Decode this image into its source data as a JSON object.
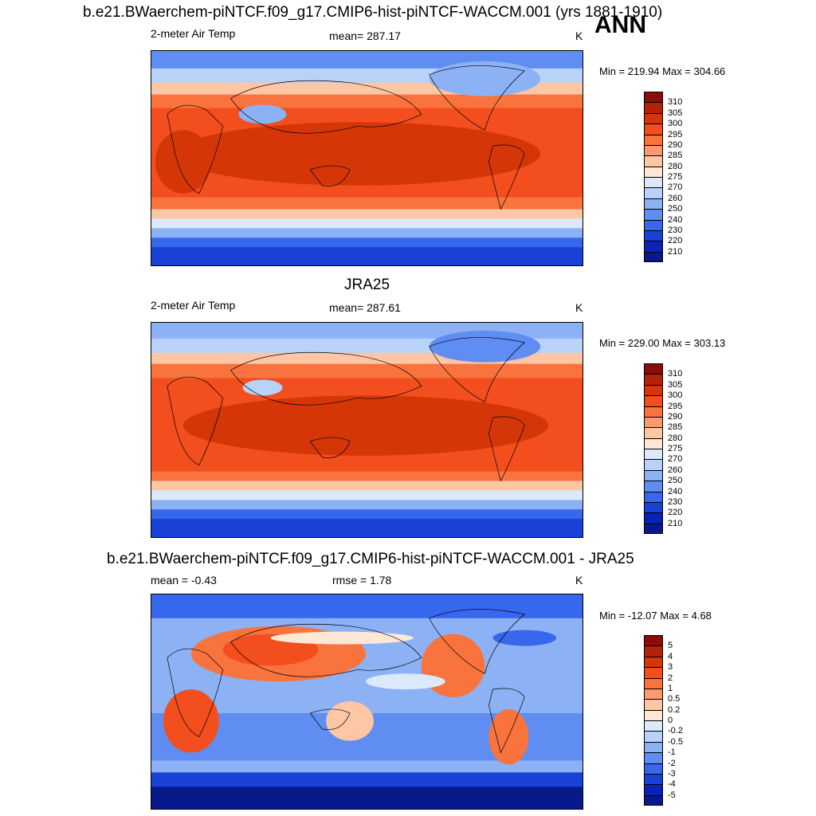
{
  "figure": {
    "season": "ANN",
    "unit": "K",
    "panels": [
      {
        "title": "b.e21.BWaerchem-piNTCF.f09_g17.CMIP6-hist-piNTCF-WACCM.001 (yrs 1881-1910)",
        "left_label": "2-meter Air Temp",
        "center_label": "mean= 287.17",
        "right_label": "K",
        "minmax": "Min = 219.94 Max = 304.66",
        "kind": "abs"
      },
      {
        "title": "JRA25",
        "left_label": "2-meter Air Temp",
        "center_label": "mean= 287.61",
        "right_label": "K",
        "minmax": "Min = 229.00 Max = 303.13",
        "kind": "abs"
      },
      {
        "title": "b.e21.BWaerchem-piNTCF.f09_g17.CMIP6-hist-piNTCF-WACCM.001 - JRA25",
        "left_label": "mean =  -0.43",
        "center_label": "rmse =   1.78",
        "right_label": "K",
        "minmax": "Min = -12.07 Max =   4.68",
        "kind": "diff"
      }
    ]
  },
  "colorbars": {
    "abs": {
      "labels": [
        "310",
        "305",
        "300",
        "295",
        "290",
        "285",
        "280",
        "275",
        "270",
        "260",
        "250",
        "240",
        "230",
        "220",
        "210"
      ],
      "colors": [
        "#8a0c0c",
        "#b52208",
        "#d43608",
        "#f24e1e",
        "#f9733e",
        "#fb9a6e",
        "#fdc6a4",
        "#fde8d6",
        "#dbe9fb",
        "#b9d2f9",
        "#8cb2f5",
        "#5f8df2",
        "#3667ec",
        "#1a41d6",
        "#0a22b8",
        "#071a8c"
      ]
    },
    "diff": {
      "labels": [
        "5",
        "4",
        "3",
        "2",
        "1",
        "0.5",
        "0.2",
        "0",
        "-0.2",
        "-0.5",
        "-1",
        "-2",
        "-3",
        "-4",
        "-5"
      ],
      "colors": [
        "#8a0c0c",
        "#b52208",
        "#d43608",
        "#f24e1e",
        "#f9733e",
        "#fb9a6e",
        "#fdc6a4",
        "#fde8d6",
        "#dbe9fb",
        "#b9d2f9",
        "#8cb2f5",
        "#5f8df2",
        "#3667ec",
        "#1a41d6",
        "#0a22b8",
        "#071a8c"
      ]
    }
  }
}
